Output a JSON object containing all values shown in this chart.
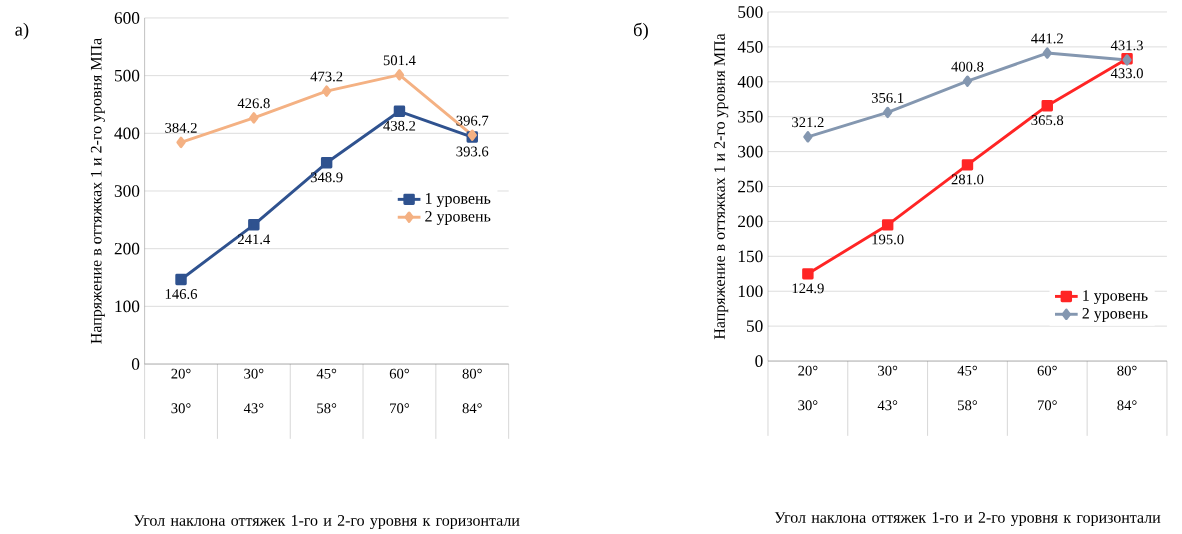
{
  "chart_data": [
    {
      "type": "line",
      "title": "а)",
      "xlabel": "Угол наклона оттяжек 1-го и 2-го уровня к горизонтали",
      "ylabel": "Напряжение в оттяжках 1 и 2-го уровня МПа",
      "categories": [
        "20° 30°",
        "30° 43°",
        "45° 58°",
        "60° 70°",
        "80° 84°"
      ],
      "series": [
        {
          "name": "1 уровень",
          "color": "#2f528f",
          "marker": "square",
          "values": [
            146.6,
            241.4,
            348.9,
            438.2,
            393.6
          ],
          "value_labels": [
            "146.6",
            "241.4",
            "348.9",
            "438.2",
            "393.6"
          ]
        },
        {
          "name": "2 уровень",
          "color": "#f4b183",
          "marker": "diamond",
          "values": [
            384.2,
            426.8,
            473.2,
            501.4,
            396.7
          ],
          "value_labels": [
            "384.2",
            "426.8",
            "473.2",
            "501.4",
            "396.7"
          ]
        }
      ],
      "ylim": [
        0,
        600
      ],
      "yticks": [
        0,
        100,
        200,
        300,
        400,
        500,
        600
      ],
      "grid": "y",
      "legend": "right"
    },
    {
      "type": "line",
      "title": "б)",
      "xlabel": "Угол наклона оттяжек 1-го и 2-го уровня к горизонтали",
      "ylabel": "Напряжение в оттяжках 1 и 2-го уровня МПа",
      "categories": [
        "20° 30°",
        "30° 43°",
        "45° 58°",
        "60° 70°",
        "80° 84°"
      ],
      "series": [
        {
          "name": "1 уровень",
          "color": "#ff2525",
          "marker": "square",
          "values": [
            124.9,
            195.0,
            281.0,
            365.8,
            433.0
          ],
          "value_labels": [
            "124.9",
            "195.0",
            "281.0",
            "365.8",
            "433.0"
          ]
        },
        {
          "name": "2 уровень",
          "color": "#8497b0",
          "marker": "diamond",
          "values": [
            321.2,
            356.1,
            400.8,
            441.2,
            431.3
          ],
          "value_labels": [
            "321.2",
            "356.1",
            "400.8",
            "441.2",
            "431.3"
          ]
        }
      ],
      "ylim": [
        0,
        500
      ],
      "yticks": [
        0,
        50,
        100,
        150,
        200,
        250,
        300,
        350,
        400,
        450,
        500
      ],
      "grid": "y",
      "legend": "bottom right"
    }
  ]
}
